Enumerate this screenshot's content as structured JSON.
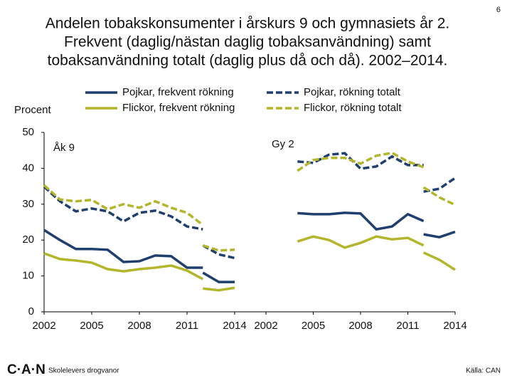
{
  "page_number": "6",
  "footer": {
    "logo": "C·A·N",
    "left": "Skolelevers drogvanor",
    "source": "Källa: CAN"
  },
  "chart_data": {
    "type": "line",
    "title": [
      "Andelen tobakskonsumenter i årskurs 9 och gymnasiets år 2.",
      "Frekvent (daglig/nästan daglig tobaksanvändning) samt",
      "tobaksanvändning totalt (daglig plus då och då). 2002–2014."
    ],
    "y_label": "Procent",
    "ylim": [
      0,
      50
    ],
    "yticks": [
      0,
      10,
      20,
      30,
      40,
      50
    ],
    "series": [
      {
        "name": "Pojkar, frekvent rökning",
        "color": "#1f3f6e",
        "dashed": false
      },
      {
        "name": "Flickor, frekvent rökning",
        "color": "#b3b52a",
        "dashed": false
      },
      {
        "name": "Pojkar, rökning totalt",
        "color": "#1f3f6e",
        "dashed": true
      },
      {
        "name": "Flickor, rökning totalt",
        "color": "#b3b52a",
        "dashed": true
      }
    ],
    "panels": [
      {
        "label": "Åk 9",
        "xlim": [
          2002,
          2014
        ],
        "xticks": [
          2002,
          2005,
          2008,
          2011,
          2014
        ],
        "x": [
          2002,
          2003,
          2004,
          2005,
          2006,
          2007,
          2008,
          2009,
          2010,
          2011,
          2012,
          null,
          2012,
          2013,
          2014
        ],
        "values": [
          [
            22.8,
            20,
            17.5,
            17.5,
            17.3,
            13.9,
            14.1,
            15.7,
            15.5,
            12.3,
            12.3,
            null,
            10.9,
            8.3,
            8.3
          ],
          [
            16.3,
            14.7,
            14.3,
            13.7,
            11.9,
            11.3,
            11.9,
            12.3,
            12.9,
            11.5,
            9.1,
            null,
            6.5,
            6,
            6.7
          ],
          [
            34.9,
            30.8,
            28,
            28.8,
            28,
            25.2,
            27.6,
            28.2,
            26.6,
            23.8,
            23,
            null,
            18.5,
            16,
            15
          ],
          [
            35.3,
            31.3,
            30.8,
            31.2,
            28.6,
            30,
            29,
            30.8,
            29,
            27.6,
            24.2,
            null,
            18.5,
            17.1,
            17.3
          ]
        ]
      },
      {
        "label": "Gy 2",
        "xlim": [
          2002,
          2014
        ],
        "xticks": [
          2002,
          2005,
          2008,
          2011,
          2014
        ],
        "x": [
          2004,
          2005,
          2006,
          2007,
          2008,
          2009,
          2010,
          2011,
          2012,
          null,
          2012,
          2013,
          2014
        ],
        "values": [
          [
            27.5,
            27.2,
            27.2,
            27.6,
            27.4,
            23,
            23.8,
            27.2,
            25.3,
            null,
            21.6,
            20.8,
            22.3
          ],
          [
            19.6,
            21,
            20,
            17.9,
            19.2,
            21,
            20.2,
            20.6,
            18.5,
            null,
            16.5,
            14.5,
            11.7
          ],
          [
            41.9,
            41.5,
            43.8,
            44.2,
            39.9,
            40.5,
            43.3,
            40.9,
            40.9,
            null,
            33.5,
            34.3,
            37.3
          ],
          [
            39.3,
            42.3,
            42.9,
            42.9,
            41.3,
            43.5,
            44.3,
            41.9,
            40.3,
            null,
            34.7,
            31.9,
            29.8
          ]
        ]
      }
    ]
  }
}
